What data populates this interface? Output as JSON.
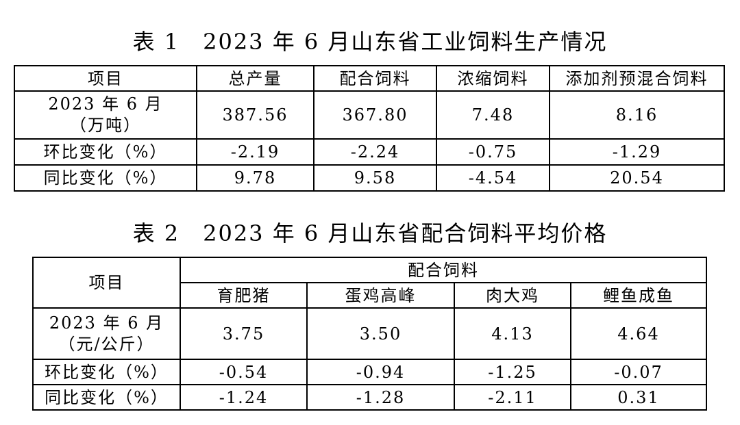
{
  "table1": {
    "title": "表 1　2023 年 6 月山东省工业饲料生产情况",
    "headers": [
      "项目",
      "总产量",
      "配合饲料",
      "浓缩饲料",
      "添加剂预混合饲料"
    ],
    "rows": [
      {
        "label_line1": "2023 年 6 月",
        "label_line2": "（万吨）",
        "values": [
          "387.56",
          "367.80",
          "7.48",
          "8.16"
        ]
      },
      {
        "label": "环比变化（%）",
        "values": [
          "-2.19",
          "-2.24",
          "-0.75",
          "-1.29"
        ]
      },
      {
        "label": "同比变化（%）",
        "values": [
          "9.78",
          "9.58",
          "-4.54",
          "20.54"
        ]
      }
    ]
  },
  "table2": {
    "title": "表 2　2023 年 6 月山东省配合饲料平均价格",
    "item_header": "项目",
    "group_header": "配合饲料",
    "sub_headers": [
      "育肥猪",
      "蛋鸡高峰",
      "肉大鸡",
      "鲤鱼成鱼"
    ],
    "rows": [
      {
        "label_line1": "2023 年 6 月",
        "label_line2": "（元/公斤）",
        "values": [
          "3.75",
          "3.50",
          "4.13",
          "4.64"
        ]
      },
      {
        "label": "环比变化（%）",
        "values": [
          "-0.54",
          "-0.94",
          "-1.25",
          "-0.07"
        ]
      },
      {
        "label": "同比变化（%）",
        "values": [
          "-1.24",
          "-1.28",
          "-2.11",
          "0.31"
        ]
      }
    ]
  }
}
